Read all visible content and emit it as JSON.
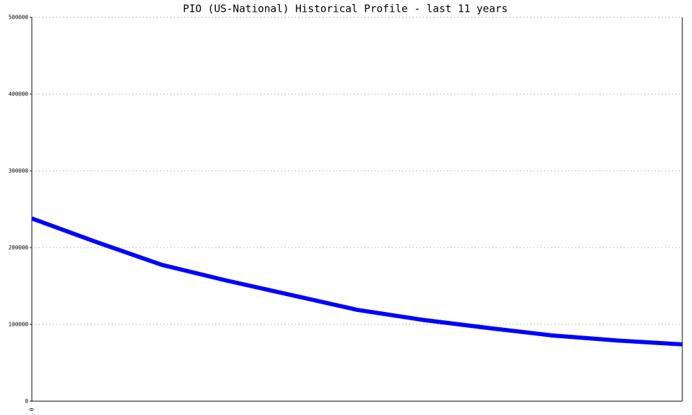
{
  "chart_data": {
    "type": "line",
    "title": "PIO (US-National) Historical Profile - last 11 years",
    "categories": [
      "0",
      null,
      null,
      null,
      null,
      null,
      null,
      null,
      null,
      null,
      null
    ],
    "series": [
      {
        "color": "#0000ff",
        "values": [
          238000,
          207000,
          177500,
          157000,
          138000,
          119000,
          106000,
          95500,
          85600,
          79000,
          74000
        ]
      }
    ],
    "ylim": [
      0,
      500000
    ],
    "yticks": [
      0,
      100000,
      200000,
      300000,
      400000,
      500000
    ],
    "grid": true
  }
}
